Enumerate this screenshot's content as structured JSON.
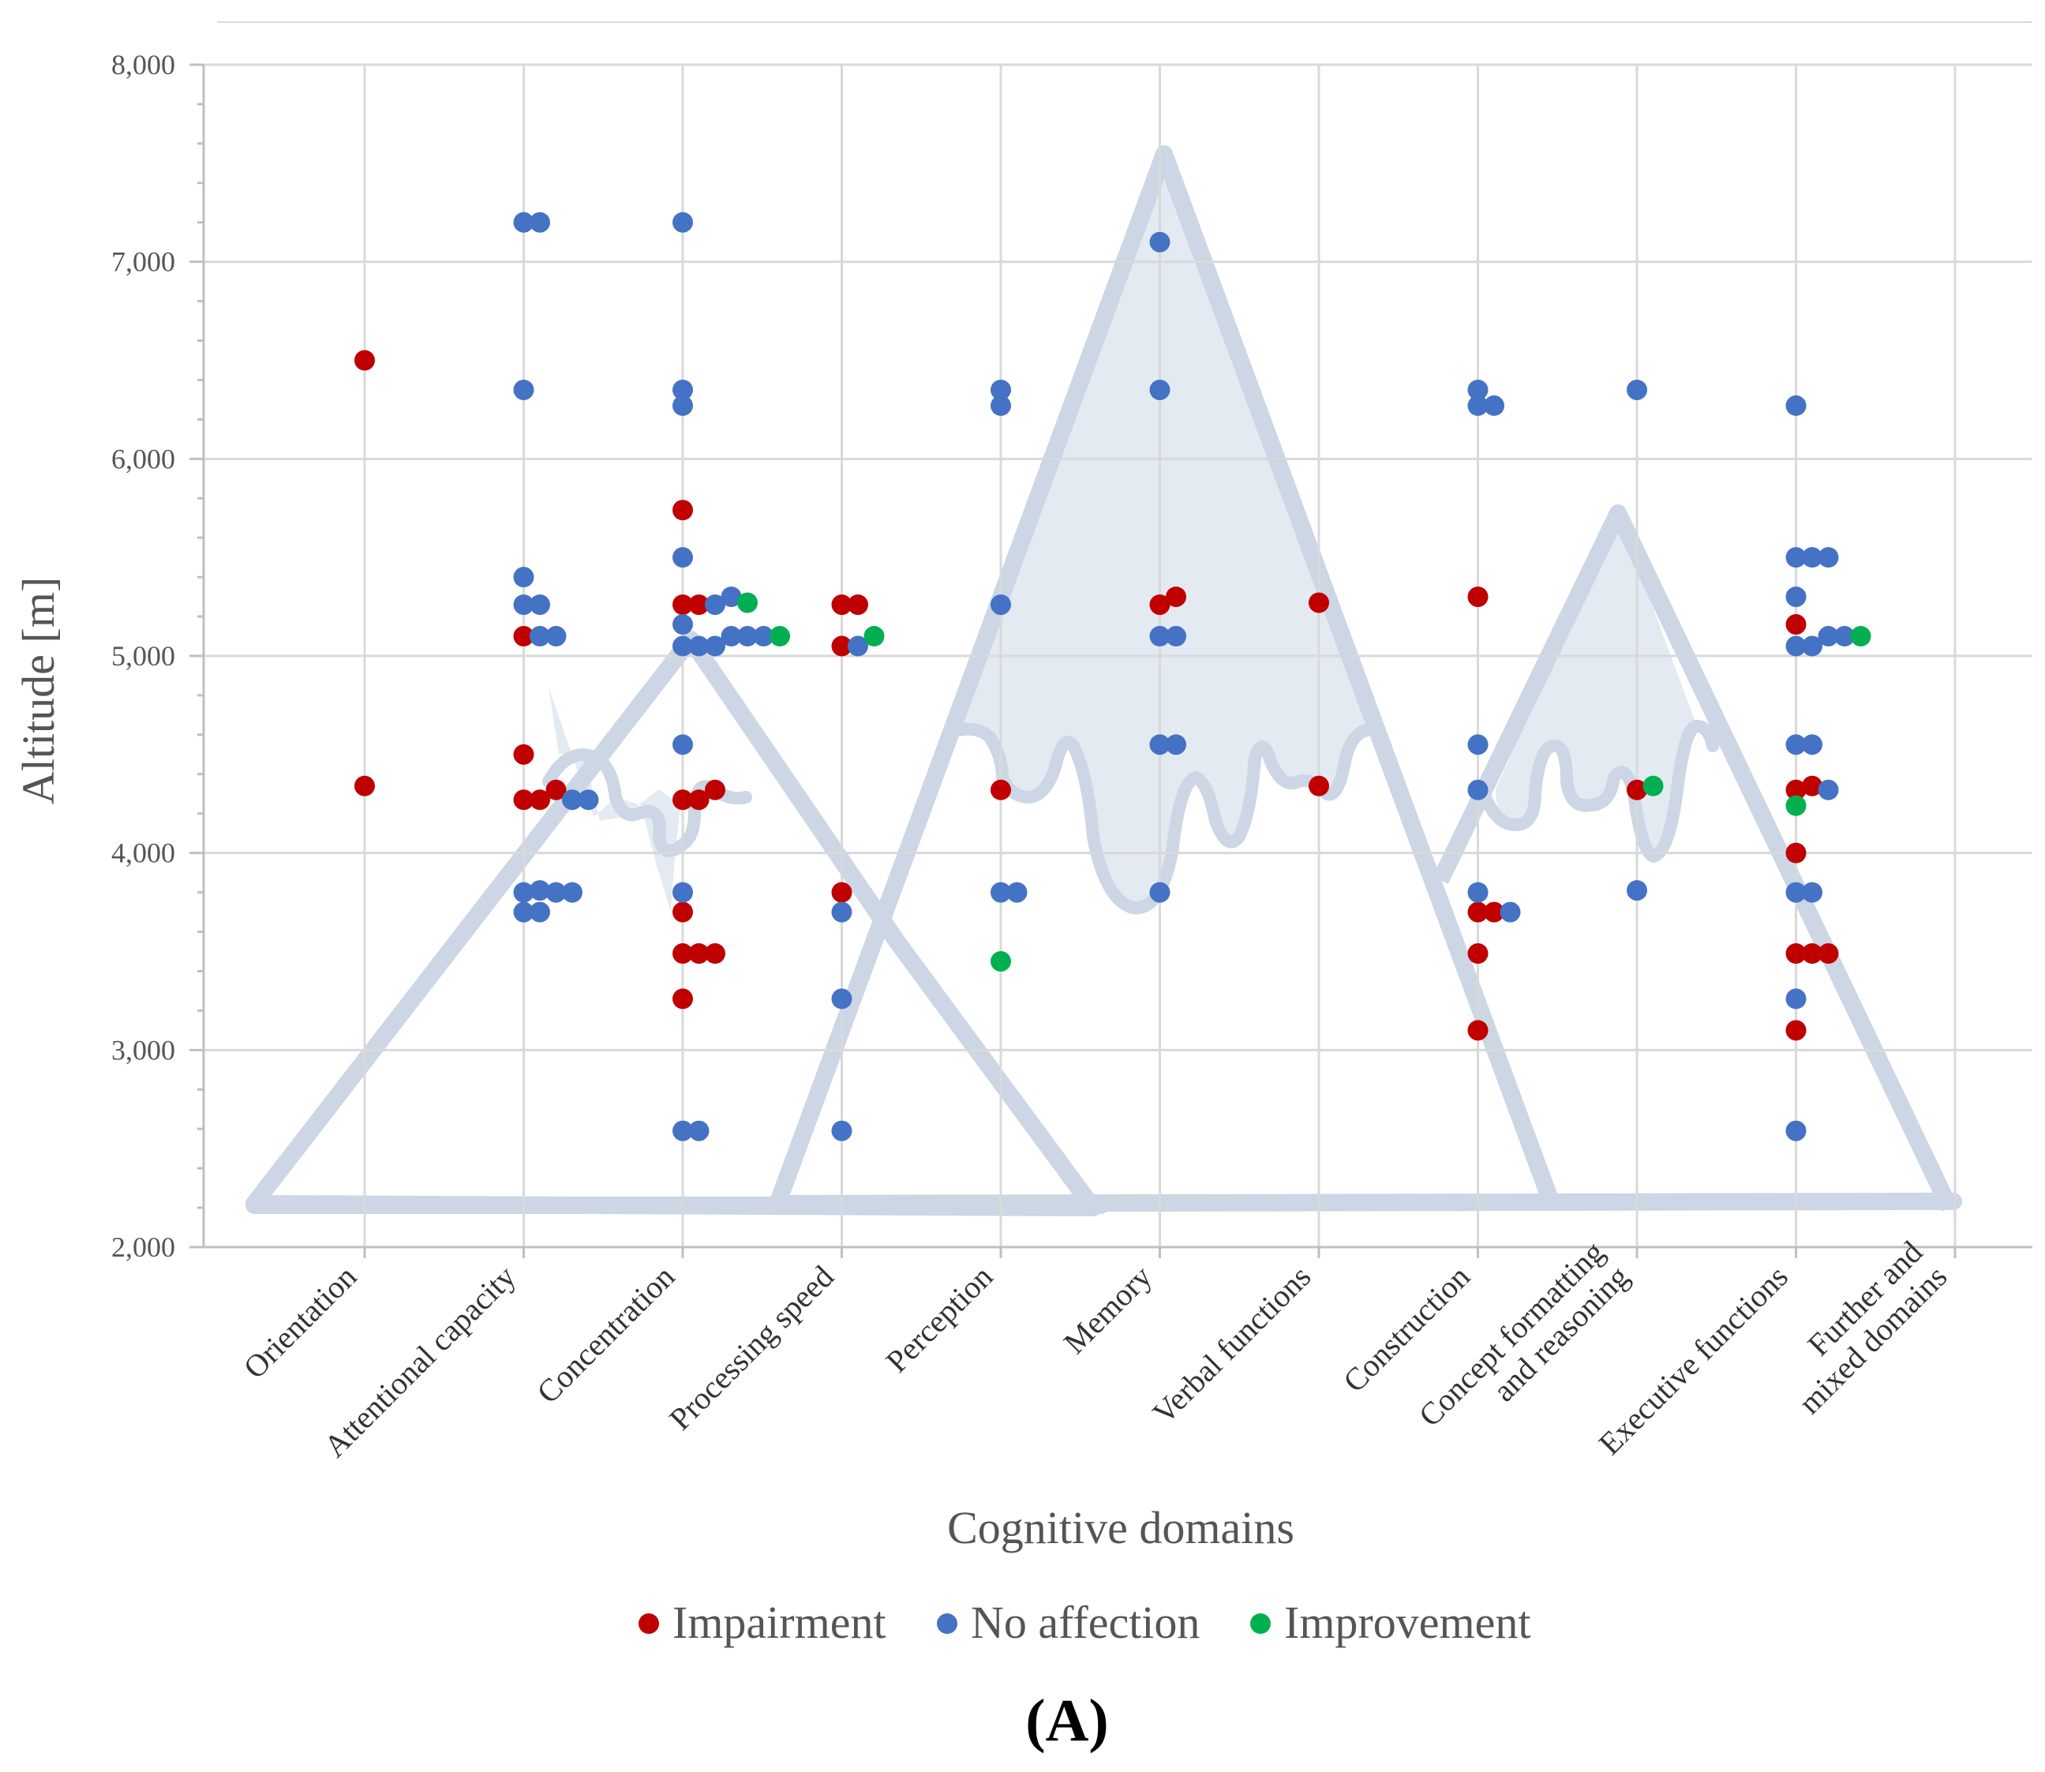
{
  "chart_data": {
    "type": "scatter",
    "title": "",
    "xlabel": "Cognitive domains",
    "ylabel": "Altitude [m]",
    "ylim": [
      2000,
      8000
    ],
    "yticks": [
      2000,
      3000,
      4000,
      5000,
      6000,
      7000,
      8000
    ],
    "ytick_labels": [
      "2,000",
      "3,000",
      "4,000",
      "5,000",
      "6,000",
      "7,000",
      "8,000"
    ],
    "grid": true,
    "categories": [
      [
        "Orientation"
      ],
      [
        "Attentional capacity"
      ],
      [
        "Concentration"
      ],
      [
        "Processing speed"
      ],
      [
        "Perception"
      ],
      [
        "Memory"
      ],
      [
        "Verbal functions"
      ],
      [
        "Construction"
      ],
      [
        "Concept formatting",
        "and reasoning"
      ],
      [
        "Executive functions"
      ],
      [
        "Further and",
        "mixed domains"
      ]
    ],
    "legend_position": "bottom",
    "panel_label": "(A)",
    "series": [
      {
        "name": "Impairment",
        "color": "#C00000",
        "points": [
          [
            0,
            0,
            6500
          ],
          [
            0,
            0,
            4340
          ],
          [
            1,
            0,
            5100
          ],
          [
            1,
            0,
            4500
          ],
          [
            1,
            0,
            4270
          ],
          [
            1,
            1,
            4270
          ],
          [
            1,
            2,
            4320
          ],
          [
            2,
            0,
            5740
          ],
          [
            2,
            0,
            5260
          ],
          [
            2,
            1,
            5260
          ],
          [
            2,
            0,
            4270
          ],
          [
            2,
            1,
            4270
          ],
          [
            2,
            2,
            4320
          ],
          [
            2,
            0,
            3700
          ],
          [
            2,
            0,
            3490
          ],
          [
            2,
            1,
            3490
          ],
          [
            2,
            2,
            3490
          ],
          [
            2,
            0,
            3260
          ],
          [
            3,
            0,
            5260
          ],
          [
            3,
            1,
            5260
          ],
          [
            3,
            0,
            5050
          ],
          [
            3,
            0,
            3800
          ],
          [
            4,
            0,
            4320
          ],
          [
            5,
            0,
            5260
          ],
          [
            5,
            1,
            5300
          ],
          [
            6,
            0,
            5270
          ],
          [
            6,
            0,
            4340
          ],
          [
            7,
            0,
            5300
          ],
          [
            7,
            0,
            3700
          ],
          [
            7,
            1,
            3700
          ],
          [
            7,
            0,
            3490
          ],
          [
            7,
            0,
            3100
          ],
          [
            8,
            0,
            4320
          ],
          [
            9,
            0,
            5160
          ],
          [
            9,
            0,
            4320
          ],
          [
            9,
            1,
            4340
          ],
          [
            9,
            0,
            4000
          ],
          [
            9,
            0,
            3490
          ],
          [
            9,
            1,
            3490
          ],
          [
            9,
            2,
            3490
          ],
          [
            9,
            0,
            3100
          ]
        ]
      },
      {
        "name": "No affection",
        "color": "#4472C4",
        "points": [
          [
            1,
            0,
            7200
          ],
          [
            1,
            1,
            7200
          ],
          [
            1,
            0,
            6350
          ],
          [
            1,
            0,
            5400
          ],
          [
            1,
            0,
            5260
          ],
          [
            1,
            1,
            5260
          ],
          [
            1,
            1,
            5100
          ],
          [
            1,
            2,
            5100
          ],
          [
            1,
            3,
            4270
          ],
          [
            1,
            4,
            4270
          ],
          [
            1,
            0,
            3800
          ],
          [
            1,
            1,
            3810
          ],
          [
            1,
            2,
            3800
          ],
          [
            1,
            3,
            3800
          ],
          [
            1,
            0,
            3700
          ],
          [
            1,
            1,
            3700
          ],
          [
            2,
            0,
            7200
          ],
          [
            2,
            0,
            6350
          ],
          [
            2,
            0,
            6270
          ],
          [
            2,
            0,
            5500
          ],
          [
            2,
            0,
            5160
          ],
          [
            2,
            2,
            5260
          ],
          [
            2,
            3,
            5300
          ],
          [
            2,
            0,
            5050
          ],
          [
            2,
            1,
            5050
          ],
          [
            2,
            2,
            5050
          ],
          [
            2,
            3,
            5100
          ],
          [
            2,
            4,
            5100
          ],
          [
            2,
            5,
            5100
          ],
          [
            2,
            0,
            4550
          ],
          [
            2,
            0,
            3800
          ],
          [
            2,
            0,
            2590
          ],
          [
            2,
            1,
            2590
          ],
          [
            3,
            1,
            5050
          ],
          [
            3,
            0,
            3700
          ],
          [
            3,
            0,
            3260
          ],
          [
            3,
            0,
            2590
          ],
          [
            4,
            0,
            6350
          ],
          [
            4,
            0,
            6270
          ],
          [
            4,
            0,
            5260
          ],
          [
            4,
            0,
            3800
          ],
          [
            4,
            1,
            3800
          ],
          [
            5,
            0,
            7100
          ],
          [
            5,
            0,
            6350
          ],
          [
            5,
            0,
            5100
          ],
          [
            5,
            1,
            5100
          ],
          [
            5,
            0,
            4550
          ],
          [
            5,
            1,
            4550
          ],
          [
            5,
            0,
            3800
          ],
          [
            7,
            0,
            6350
          ],
          [
            7,
            0,
            6270
          ],
          [
            7,
            1,
            6270
          ],
          [
            7,
            0,
            4550
          ],
          [
            7,
            0,
            4320
          ],
          [
            7,
            0,
            3800
          ],
          [
            7,
            2,
            3700
          ],
          [
            8,
            0,
            6350
          ],
          [
            8,
            0,
            3810
          ],
          [
            9,
            0,
            6270
          ],
          [
            9,
            0,
            5500
          ],
          [
            9,
            1,
            5500
          ],
          [
            9,
            2,
            5500
          ],
          [
            9,
            0,
            5300
          ],
          [
            9,
            0,
            5050
          ],
          [
            9,
            1,
            5050
          ],
          [
            9,
            2,
            5100
          ],
          [
            9,
            3,
            5100
          ],
          [
            9,
            0,
            4550
          ],
          [
            9,
            1,
            4550
          ],
          [
            9,
            2,
            4320
          ],
          [
            9,
            0,
            3800
          ],
          [
            9,
            1,
            3800
          ],
          [
            9,
            0,
            3260
          ],
          [
            9,
            0,
            2590
          ]
        ]
      },
      {
        "name": "Improvement",
        "color": "#00B050",
        "points": [
          [
            2,
            4,
            5270
          ],
          [
            2,
            6,
            5100
          ],
          [
            3,
            2,
            5100
          ],
          [
            4,
            0,
            3450
          ],
          [
            8,
            1,
            4340
          ],
          [
            9,
            4,
            5100
          ],
          [
            9,
            0,
            4240
          ]
        ]
      }
    ]
  },
  "colors": {
    "mountain_stroke": "#CCD6E4",
    "mountain_fill": "#E4EAF2",
    "grid": "#D9D9D9",
    "axis": "#BFBFBF"
  }
}
